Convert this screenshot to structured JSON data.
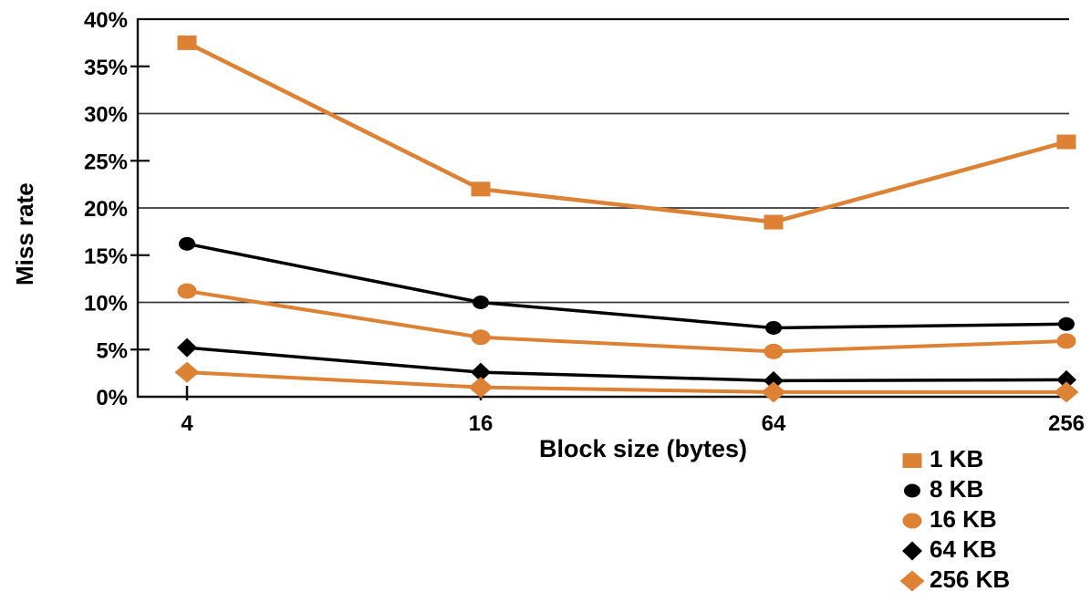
{
  "chart_data": {
    "type": "line",
    "title": "",
    "xlabel": "Block size (bytes)",
    "ylabel": "Miss rate",
    "x_scale": "log-categorical",
    "x_categories": [
      "4",
      "16",
      "64",
      "256"
    ],
    "y_ticks": [
      "40%",
      "35%",
      "30%",
      "25%",
      "20%",
      "15%",
      "10%",
      "5%",
      "0%"
    ],
    "y_tick_values": [
      40,
      35,
      30,
      25,
      20,
      15,
      10,
      5,
      0
    ],
    "ylim": [
      0,
      40
    ],
    "grid_values": [
      40,
      30,
      20,
      10
    ],
    "minor_tick_values": [
      35,
      25,
      15,
      5
    ],
    "grid": "horizontal-major",
    "legend_position": "bottom-right-outside",
    "series": [
      {
        "name": "1 KB",
        "color": "#DD8134",
        "marker": "square",
        "values": [
          37.5,
          22.0,
          18.5,
          27.0
        ]
      },
      {
        "name": "8 KB",
        "color": "#000000",
        "marker": "circle",
        "values": [
          16.2,
          10.0,
          7.3,
          7.7
        ]
      },
      {
        "name": "16 KB",
        "color": "#DD8134",
        "marker": "circle-large",
        "values": [
          11.2,
          6.3,
          4.8,
          5.9
        ]
      },
      {
        "name": "64 KB",
        "color": "#000000",
        "marker": "diamond",
        "values": [
          5.2,
          2.6,
          1.7,
          1.8
        ]
      },
      {
        "name": "256 KB",
        "color": "#DD8134",
        "marker": "diamond-large",
        "values": [
          2.6,
          1.0,
          0.5,
          0.5
        ]
      }
    ]
  },
  "colors": {
    "accent_orange": "#DD8134",
    "series_black": "#000000",
    "gridline": "#3a3a3a",
    "axis": "#111111",
    "background": "#ffffff"
  }
}
